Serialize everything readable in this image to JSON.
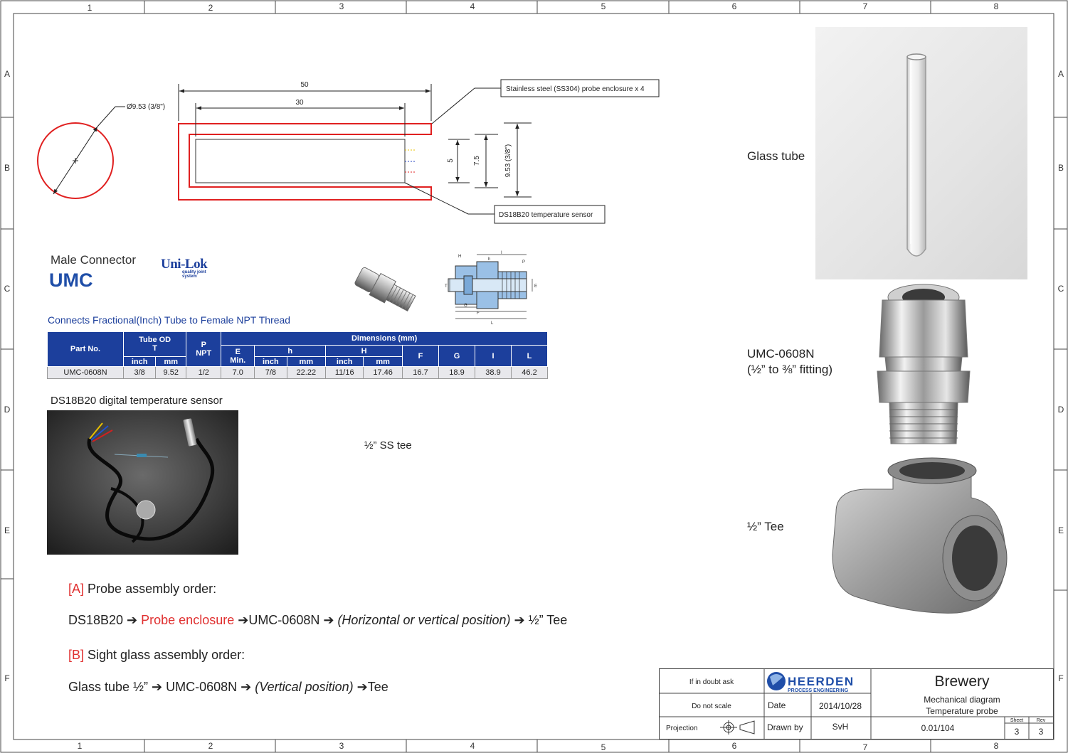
{
  "frame": {
    "columns": [
      "1",
      "2",
      "3",
      "4",
      "5",
      "6",
      "7",
      "8"
    ],
    "rows": [
      "A",
      "B",
      "C",
      "D",
      "E",
      "F"
    ]
  },
  "drawing": {
    "dim_50": "50",
    "dim_30": "30",
    "dim_diameter": "Ø9.53 (3/8\")",
    "dim_5": "5",
    "dim_7_5": "7.5",
    "dim_9_53": "9.53 (3/8\")",
    "callout_enclosure": "Stainless steel (SS304) probe enclosure x 4",
    "callout_sensor": "DS18B20 temperature sensor"
  },
  "connector": {
    "title": "Male Connector",
    "model": "UMC",
    "brand": "Uni-Lok",
    "brand_tag": "quality joint system",
    "subtitle": "Connects Fractional(Inch) Tube to Female NPT Thread",
    "diagram_letters": [
      "H",
      "h",
      "I",
      "P",
      "T",
      "E",
      "G",
      "F",
      "L"
    ],
    "table": {
      "h_part": "Part No.",
      "h_tube": "Tube OD",
      "h_tube_t": "T",
      "h_p": "P",
      "h_npt": "NPT",
      "h_dims": "Dimensions (mm)",
      "h_e": "E",
      "h_emin": "Min.",
      "h_h_small": "h",
      "h_h_big": "H",
      "h_f": "F",
      "h_g": "G",
      "h_i": "I",
      "h_l": "L",
      "h_inch": "inch",
      "h_mm": "mm",
      "row": [
        "UMC-0608N",
        "3/8",
        "9.52",
        "1/2",
        "7.0",
        "7/8",
        "22.22",
        "11/16",
        "17.46",
        "16.7",
        "18.9",
        "38.9",
        "46.2"
      ]
    }
  },
  "sensor_label": "DS18B20 digital temperature sensor",
  "tee_note": "½” SS tee",
  "right_labels": {
    "glass": "Glass tube",
    "umc_line1": "UMC-0608N",
    "umc_line2": "(½” to ⅜” fitting)",
    "tee": "½” Tee"
  },
  "assembly": {
    "a_tag": "[A]",
    "a_title": "Probe assembly order:",
    "a_1": "DS18B20 ➔ ",
    "a_2": "Probe enclosure",
    "a_3": " ➔UMC-0608N ➔ ",
    "a_4": "(Horizontal or vertical position)",
    "a_5": " ➔ ½” Tee",
    "b_tag": "[B]",
    "b_title": "Sight glass assembly order:",
    "b_1": "Glass tube ½” ➔ UMC-0608N ➔ ",
    "b_2": "(Vertical position)",
    "b_3": " ➔Tee"
  },
  "title_block": {
    "doubt": "If in doubt ask",
    "logo_name": "HEERDEN",
    "logo_sub": "PROCESS ENGINEERING",
    "title": "Brewery",
    "sub1": "Mechanical diagram",
    "sub2": "Temperature probe",
    "no_scale": "Do not scale",
    "date_label": "Date",
    "date": "2014/10/28",
    "projection": "Projection",
    "drawn_label": "Drawn by",
    "drawn": "SvH",
    "number": "0.01/104",
    "sheet_label": "Sheet",
    "sheet": "3",
    "rev_label": "Rev",
    "rev": "3"
  },
  "colors": {
    "accent_red": "#e03030",
    "table_blue": "#1c3f9c",
    "connector_blue": "#1f4ea8"
  }
}
